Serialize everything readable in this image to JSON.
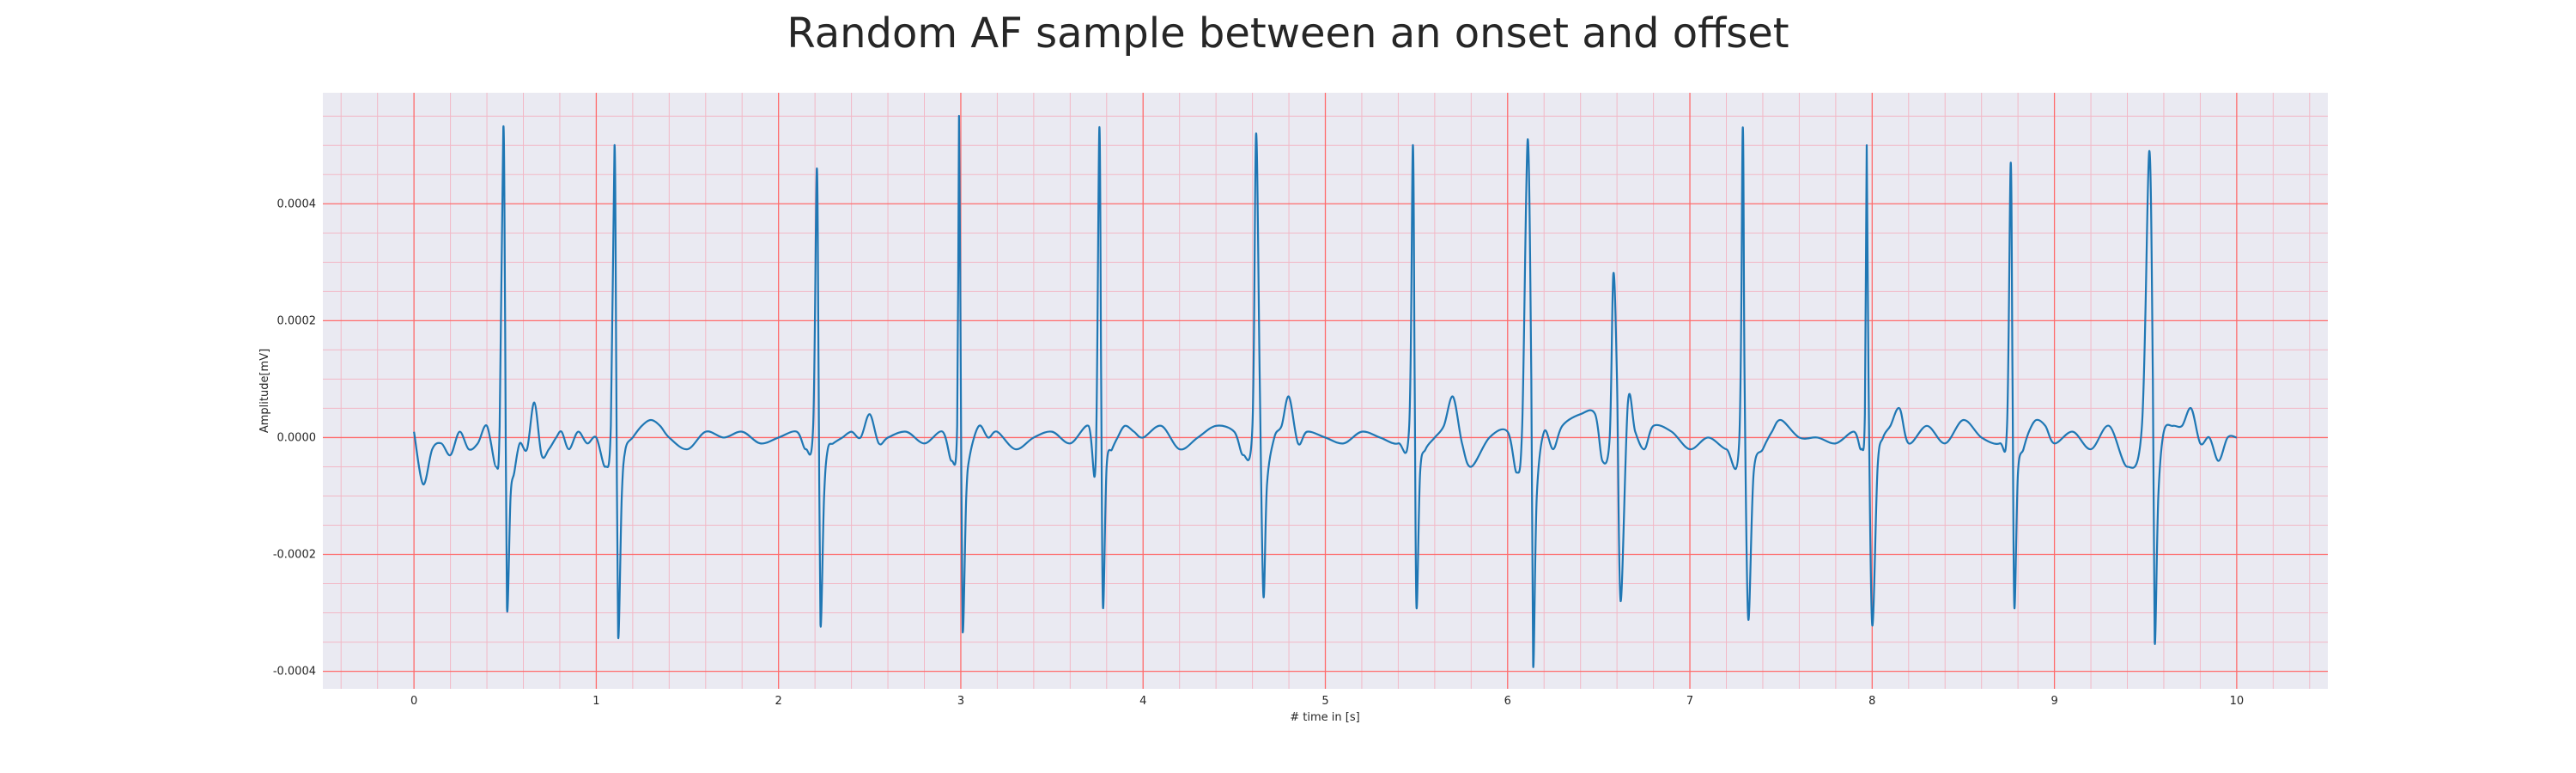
{
  "chart_data": {
    "type": "line",
    "title": "Random AF sample between an onset and offset",
    "xlabel": "# time in [s]",
    "ylabel": "Amplitude[mV]",
    "xlim": [
      -0.5,
      10.5
    ],
    "ylim": [
      -0.00043,
      0.00059
    ],
    "x_ticks": [
      0,
      1,
      2,
      3,
      4,
      5,
      6,
      7,
      8,
      9,
      10
    ],
    "x_tick_labels": [
      "0",
      "1",
      "2",
      "3",
      "4",
      "5",
      "6",
      "7",
      "8",
      "9",
      "10"
    ],
    "y_ticks": [
      -0.0004,
      -0.0002,
      0.0,
      0.0002,
      0.0004
    ],
    "y_tick_labels": [
      "-0.0004",
      "-0.0002",
      "0.0000",
      "0.0002",
      "0.0004"
    ],
    "grid": {
      "major": true,
      "minor": true,
      "major_color": "#ff6b6b",
      "minor_color": "#f2b8c6"
    },
    "colors": {
      "background": "#eaeaf2",
      "line": "#1f77b4"
    },
    "series": [
      {
        "x": [
          0.0,
          0.05,
          0.1,
          0.15,
          0.2,
          0.25,
          0.3,
          0.35,
          0.4,
          0.45,
          0.47,
          0.49,
          0.5,
          0.51,
          0.53,
          0.55,
          0.58,
          0.62,
          0.66,
          0.7,
          0.74,
          0.78,
          0.81,
          0.85,
          0.9,
          0.95,
          1.0,
          1.05,
          1.08,
          1.1,
          1.11,
          1.12,
          1.14,
          1.16,
          1.2,
          1.25,
          1.3,
          1.35,
          1.4,
          1.5,
          1.6,
          1.7,
          1.8,
          1.9,
          2.0,
          2.1,
          2.15,
          2.19,
          2.21,
          2.22,
          2.23,
          2.25,
          2.27,
          2.3,
          2.35,
          2.4,
          2.45,
          2.5,
          2.55,
          2.6,
          2.7,
          2.8,
          2.9,
          2.95,
          2.98,
          2.99,
          3.0,
          3.01,
          3.03,
          3.05,
          3.1,
          3.15,
          3.2,
          3.3,
          3.4,
          3.5,
          3.6,
          3.7,
          3.74,
          3.76,
          3.77,
          3.78,
          3.8,
          3.83,
          3.86,
          3.9,
          3.95,
          4.0,
          4.1,
          4.2,
          4.3,
          4.4,
          4.5,
          4.55,
          4.6,
          4.62,
          4.64,
          4.66,
          4.68,
          4.72,
          4.76,
          4.8,
          4.85,
          4.9,
          5.0,
          5.1,
          5.2,
          5.3,
          5.4,
          5.46,
          5.48,
          5.49,
          5.5,
          5.52,
          5.55,
          5.6,
          5.65,
          5.7,
          5.75,
          5.8,
          5.9,
          6.0,
          6.05,
          6.08,
          6.11,
          6.13,
          6.14,
          6.16,
          6.2,
          6.25,
          6.3,
          6.4,
          6.48,
          6.52,
          6.56,
          6.58,
          6.6,
          6.62,
          6.66,
          6.7,
          6.75,
          6.8,
          6.9,
          7.0,
          7.1,
          7.2,
          7.27,
          7.29,
          7.3,
          7.32,
          7.35,
          7.4,
          7.45,
          7.5,
          7.6,
          7.7,
          7.8,
          7.9,
          7.94,
          7.96,
          7.97,
          7.98,
          8.0,
          8.03,
          8.06,
          8.1,
          8.15,
          8.2,
          8.3,
          8.4,
          8.5,
          8.6,
          8.7,
          8.74,
          8.76,
          8.77,
          8.78,
          8.8,
          8.83,
          8.86,
          8.9,
          8.95,
          9.0,
          9.1,
          9.2,
          9.3,
          9.4,
          9.48,
          9.52,
          9.54,
          9.55,
          9.57,
          9.6,
          9.65,
          9.7,
          9.75,
          9.8,
          9.85,
          9.9,
          9.95,
          10.0
        ],
        "y": [
          1e-05,
          -8e-05,
          -2e-05,
          -1e-05,
          -3e-05,
          1e-05,
          -2e-05,
          -1e-05,
          2e-05,
          -5e-05,
          2e-05,
          0.00053,
          0.0002,
          -0.00029,
          -0.0001,
          -6e-05,
          -1e-05,
          -2e-05,
          6e-05,
          -3e-05,
          -2e-05,
          0.0,
          1e-05,
          -2e-05,
          1e-05,
          -1e-05,
          0.0,
          -5e-05,
          2e-05,
          0.0005,
          0.0001,
          -0.00034,
          -0.0001,
          -2e-05,
          0.0,
          2e-05,
          3e-05,
          2e-05,
          0.0,
          -2e-05,
          1e-05,
          0.0,
          1e-05,
          -1e-05,
          0.0,
          1e-05,
          -2e-05,
          2e-05,
          0.00046,
          0.0001,
          -0.00032,
          -0.0001,
          -2e-05,
          -1e-05,
          0.0,
          1e-05,
          0.0,
          4e-05,
          -1e-05,
          0.0,
          1e-05,
          -1e-05,
          1e-05,
          -4e-05,
          2e-05,
          0.00055,
          0.0001,
          -0.00033,
          -0.0001,
          -3e-05,
          2e-05,
          0.0,
          1e-05,
          -2e-05,
          0.0,
          1e-05,
          -1e-05,
          2e-05,
          -4e-05,
          0.00053,
          0.0001,
          -0.00029,
          -5e-05,
          -2e-05,
          0.0,
          2e-05,
          1e-05,
          0.0,
          2e-05,
          -2e-05,
          0.0,
          2e-05,
          1e-05,
          -3e-05,
          2e-05,
          0.00052,
          0.0001,
          -0.00027,
          -8e-05,
          0.0,
          2e-05,
          7e-05,
          -1e-05,
          1e-05,
          0.0,
          -1e-05,
          1e-05,
          0.0,
          -1e-05,
          2e-05,
          0.0005,
          0.0001,
          -0.00029,
          -6e-05,
          -2e-05,
          0.0,
          2e-05,
          7e-05,
          -1e-05,
          -5e-05,
          0.0,
          1e-05,
          -6e-05,
          2e-05,
          0.00051,
          0.0001,
          -0.00039,
          -0.0001,
          1e-05,
          -2e-05,
          2e-05,
          4e-05,
          4e-05,
          -4e-05,
          0.0,
          0.00028,
          0.0001,
          -0.00028,
          6e-05,
          1e-05,
          -2e-05,
          2e-05,
          1e-05,
          -2e-05,
          0.0,
          -2e-05,
          -1e-05,
          0.00053,
          0.0001,
          -0.00031,
          -6e-05,
          -2e-05,
          1e-05,
          3e-05,
          0.0,
          0.0,
          -1e-05,
          1e-05,
          -2e-05,
          4e-05,
          0.0005,
          0.0001,
          -0.00032,
          -5e-05,
          0.0,
          2e-05,
          5e-05,
          -1e-05,
          2e-05,
          -1e-05,
          3e-05,
          0.0,
          -1e-05,
          2e-05,
          0.00047,
          0.0001,
          -0.00029,
          -6e-05,
          -2e-05,
          1e-05,
          3e-05,
          2e-05,
          -1e-05,
          1e-05,
          -2e-05,
          2e-05,
          -5e-05,
          2e-05,
          0.00049,
          0.0001,
          -0.00035,
          -0.0001,
          1e-05,
          2e-05,
          2e-05,
          5e-05,
          -1e-05,
          0.0,
          -4e-05,
          0.0,
          0.0
        ]
      }
    ]
  }
}
